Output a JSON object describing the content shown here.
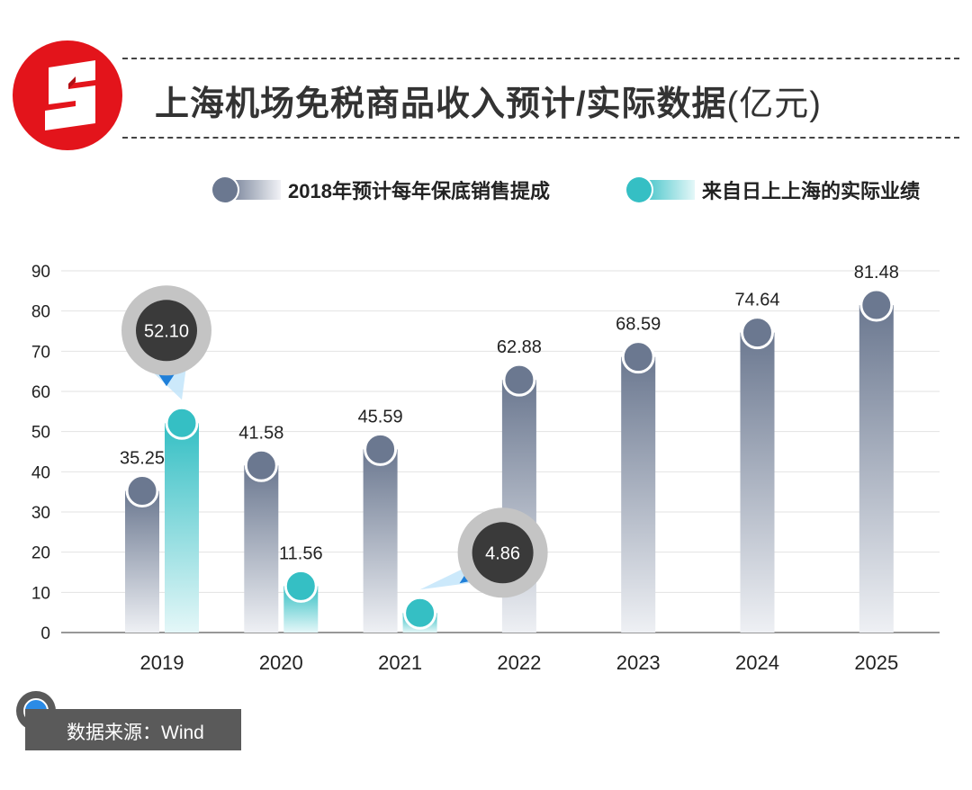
{
  "header": {
    "title": "上海机场免税商品收入预计/实际数据",
    "unit": "(亿元)"
  },
  "legend": {
    "forecast": "2018年预计每年保底销售提成",
    "actual": "来自日上上海的实际业绩"
  },
  "colors": {
    "brand": "#e3141b",
    "forecast": "#6b7890",
    "actual": "#35bfc4",
    "callout": "#3a3a3a"
  },
  "chart_data": {
    "type": "bar",
    "categories": [
      "2019",
      "2020",
      "2021",
      "2022",
      "2023",
      "2024",
      "2025"
    ],
    "series": [
      {
        "name": "2018年预计每年保底销售提成",
        "values": [
          35.25,
          41.58,
          45.59,
          62.88,
          68.59,
          74.64,
          81.48
        ]
      },
      {
        "name": "来自日上上海的实际业绩",
        "values": [
          52.1,
          11.56,
          4.86,
          null,
          null,
          null,
          null
        ]
      }
    ],
    "labels": {
      "forecast": [
        "35.25",
        "41.58",
        "45.59",
        "62.88",
        "68.59",
        "74.64",
        "81.48"
      ],
      "actual": [
        "52.10",
        "11.56",
        "4.86",
        null,
        null,
        null,
        null
      ]
    },
    "yticks": [
      0,
      10,
      20,
      30,
      40,
      50,
      60,
      70,
      80,
      90
    ],
    "ylim": [
      0,
      90
    ],
    "grid": true,
    "legend_position": "top-right",
    "callouts": [
      {
        "category": "2019",
        "series": "actual",
        "text": "52.10"
      },
      {
        "category": "2021",
        "series": "actual",
        "text": "4.86"
      }
    ]
  },
  "footer": {
    "source": "数据来源：Wind",
    "icon": "minus-circle-icon"
  }
}
